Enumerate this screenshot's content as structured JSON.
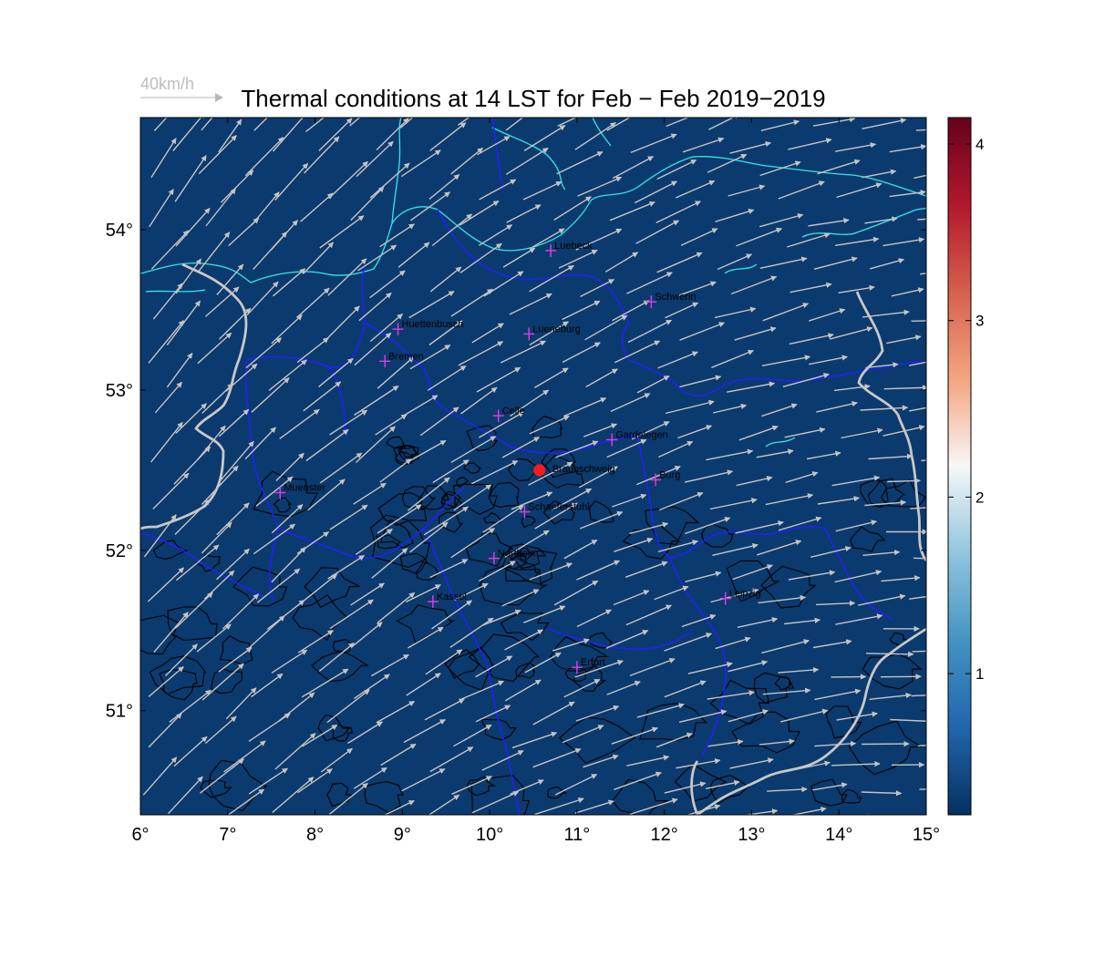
{
  "title": "Thermal conditions at 14 LST for Feb − Feb  2019−2019",
  "reference_vector": {
    "label": "40km/h"
  },
  "colors": {
    "map_fill": "#0b3a6e",
    "wind_arrow": "#c4c4c4",
    "coastline": "#33e6e6",
    "state_border": "#1f1fff",
    "country_border": "#c8c8c8",
    "contour": "#000000",
    "city_marker": "#e23ce2",
    "site_marker": "#ff1a1a"
  },
  "map": {
    "lon_range": [
      6,
      15
    ],
    "lat_range": [
      50.35,
      54.7
    ],
    "x_ticks": [
      {
        "value": 6,
        "label": "6°"
      },
      {
        "value": 7,
        "label": "7°"
      },
      {
        "value": 8,
        "label": "8°"
      },
      {
        "value": 9,
        "label": "9°"
      },
      {
        "value": 10,
        "label": "10°"
      },
      {
        "value": 11,
        "label": "11°"
      },
      {
        "value": 12,
        "label": "12°"
      },
      {
        "value": 13,
        "label": "13°"
      },
      {
        "value": 14,
        "label": "14°"
      },
      {
        "value": 15,
        "label": "15°"
      }
    ],
    "y_ticks": [
      {
        "value": 51,
        "label": "51°"
      },
      {
        "value": 52,
        "label": "52°"
      },
      {
        "value": 53,
        "label": "53°"
      },
      {
        "value": 54,
        "label": "54°"
      }
    ],
    "cities": [
      {
        "name": "Luebeck",
        "lon": 10.7,
        "lat": 53.87
      },
      {
        "name": "Schwerin",
        "lon": 11.85,
        "lat": 53.55
      },
      {
        "name": "Huettenbusch",
        "lon": 8.95,
        "lat": 53.38
      },
      {
        "name": "Lueneburg",
        "lon": 10.45,
        "lat": 53.35
      },
      {
        "name": "Bremen",
        "lon": 8.8,
        "lat": 53.18
      },
      {
        "name": "Celle",
        "lon": 10.1,
        "lat": 52.84
      },
      {
        "name": "Gardelegen",
        "lon": 11.4,
        "lat": 52.69
      },
      {
        "name": "Burg",
        "lon": 11.9,
        "lat": 52.44
      },
      {
        "name": "Muenster",
        "lon": 7.6,
        "lat": 52.36
      },
      {
        "name": "Schaeferstuhl",
        "lon": 10.4,
        "lat": 52.24
      },
      {
        "name": "Northeim",
        "lon": 10.05,
        "lat": 51.95
      },
      {
        "name": "Leipzig",
        "lon": 12.7,
        "lat": 51.7
      },
      {
        "name": "Kassel",
        "lon": 9.35,
        "lat": 51.68
      },
      {
        "name": "Erfurt",
        "lon": 11.0,
        "lat": 51.27
      }
    ],
    "site": {
      "name": "Braunschweig",
      "lon": 10.57,
      "lat": 52.5
    },
    "wind_field": {
      "regime": "westerly to south-westerly",
      "speed_kmh": [
        20,
        35
      ]
    }
  },
  "colorbar": {
    "min": 0.2,
    "max": 4.15,
    "ticks": [
      {
        "value": 1,
        "label": "1"
      },
      {
        "value": 2,
        "label": "2"
      },
      {
        "value": 3,
        "label": "3"
      },
      {
        "value": 4,
        "label": "4"
      }
    ],
    "stops": [
      "#053061",
      "#2166ac",
      "#4393c3",
      "#92c5de",
      "#f7f7f7",
      "#f4a582",
      "#d6604d",
      "#b2182b",
      "#67001f"
    ]
  }
}
